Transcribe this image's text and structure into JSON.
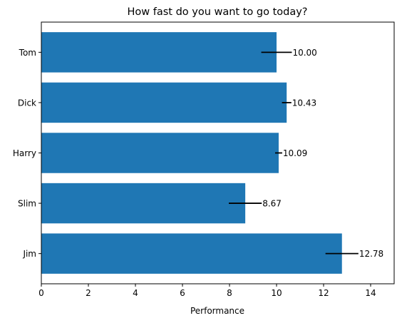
{
  "chart_data": {
    "type": "bar",
    "orientation": "horizontal",
    "title": "How fast do you want to go today?",
    "xlabel": "Performance",
    "ylabel": "",
    "xlim": [
      0,
      15
    ],
    "xticks": [
      0,
      2,
      4,
      6,
      8,
      10,
      12,
      14
    ],
    "categories": [
      "Jim",
      "Slim",
      "Harry",
      "Dick",
      "Tom"
    ],
    "values": [
      12.78,
      8.67,
      10.09,
      10.43,
      10.0
    ],
    "errors": [
      0.7,
      0.7,
      0.15,
      0.2,
      0.65
    ],
    "data_labels": [
      "12.78",
      "8.67",
      "10.09",
      "10.43",
      "10.00"
    ],
    "bar_color": "#1f77b4",
    "error_color": "#000000",
    "grid": false
  }
}
